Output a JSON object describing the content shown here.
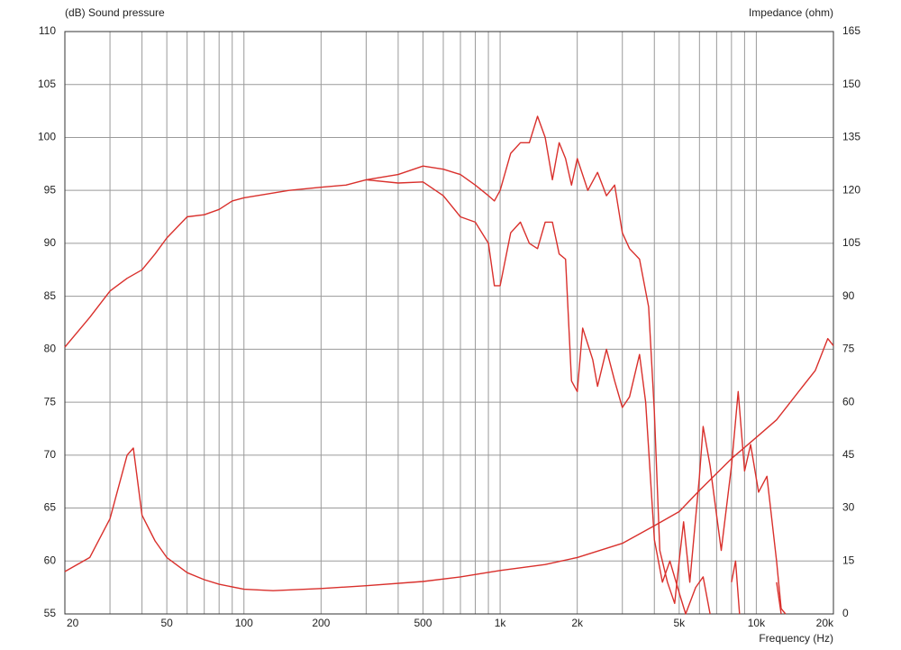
{
  "chart_data": {
    "type": "line",
    "y_label": "(dB)  Sound pressure",
    "y2_label": "Impedance  (ohm)",
    "x_label": "Frequency  (Hz)",
    "log_x": true,
    "grid": true,
    "xlim": [
      20,
      20000
    ],
    "xticks": [
      20,
      50,
      100,
      200,
      500,
      {
        "value": 1000,
        "label": "1k"
      },
      {
        "value": 2000,
        "label": "2k"
      },
      {
        "value": 5000,
        "label": "5k"
      },
      {
        "value": 10000,
        "label": "10k"
      },
      {
        "value": 20000,
        "label": "20k"
      }
    ],
    "xminor_ticks": [
      30,
      40,
      60,
      70,
      80,
      90,
      300,
      400,
      600,
      700,
      800,
      900,
      3000,
      4000,
      6000,
      7000,
      8000,
      9000
    ],
    "ylim": [
      55,
      110
    ],
    "yticks": [
      55,
      60,
      65,
      70,
      75,
      80,
      85,
      90,
      95,
      100,
      105,
      110
    ],
    "y2lim": [
      0,
      165
    ],
    "y2ticks": [
      0,
      15,
      30,
      45,
      60,
      75,
      90,
      105,
      120,
      135,
      150,
      165
    ],
    "series": [
      {
        "color": "#d9302c",
        "x": [
          20,
          25,
          30,
          35,
          40,
          45,
          50,
          60,
          70,
          80,
          90,
          100,
          150,
          200,
          250,
          300,
          400,
          500,
          600,
          700,
          800,
          900,
          950,
          1000,
          1100,
          1200,
          1300,
          1400,
          1500,
          1600,
          1700,
          1800,
          1900,
          2000,
          2200,
          2400,
          2600,
          2800,
          3000,
          3200,
          3500,
          3800,
          4000,
          4200,
          4500,
          4800,
          5000,
          5200,
          5500,
          6000,
          6200,
          6600,
          7300,
          8000,
          8500,
          9000,
          9500,
          10200,
          11000,
          12000,
          12500,
          13000
        ],
        "values": [
          80.2,
          83,
          85.5,
          86.7,
          87.5,
          89,
          90.5,
          92.5,
          92.7,
          93.2,
          94,
          94.3,
          95,
          95.3,
          95.5,
          96,
          96.5,
          97.3,
          97,
          96.5,
          95.5,
          94.5,
          94,
          95,
          98.5,
          99.5,
          99.5,
          102,
          100,
          96,
          99.5,
          98,
          95.5,
          98,
          95,
          96.7,
          94.5,
          95.5,
          91,
          89.5,
          88.5,
          84,
          74,
          61,
          58,
          56,
          60,
          63.7,
          58,
          68,
          72.7,
          69,
          61,
          69,
          76,
          68.5,
          71,
          66.5,
          68,
          60,
          55.5,
          55
        ]
      },
      {
        "color": "#d9302c",
        "x": [
          300,
          400,
          500,
          600,
          700,
          800,
          900,
          950,
          1000,
          1100,
          1200,
          1300,
          1400,
          1500,
          1600,
          1700,
          1800,
          1900,
          2000,
          2100,
          2300,
          2400,
          2600,
          2800,
          3000,
          3200,
          3500,
          3700,
          4000,
          4300,
          4600,
          5000,
          5300,
          5800,
          6200,
          6600,
          7500,
          8000,
          8300,
          8600,
          11500,
          12000,
          12500
        ],
        "values": [
          96,
          95.7,
          95.8,
          94.5,
          92.5,
          92,
          90,
          86,
          86,
          91,
          92,
          90,
          89.5,
          92,
          92,
          89,
          88.5,
          77,
          76,
          82,
          79,
          76.5,
          80,
          77,
          74.5,
          75.5,
          79.5,
          75,
          62,
          58,
          60,
          57,
          55,
          57.5,
          58.5,
          55,
          null,
          58,
          60,
          55,
          null,
          58,
          55
        ]
      },
      {
        "color": "#d9302c",
        "axis": "y2",
        "x": [
          20,
          25,
          30,
          35,
          37,
          40,
          45,
          50,
          60,
          70,
          80,
          100,
          130,
          200,
          300,
          500,
          700,
          1000,
          1500,
          2000,
          3000,
          4000,
          5000,
          6000,
          8000,
          10000,
          12000,
          15000,
          17000,
          19000,
          20000
        ],
        "values": [
          12,
          16,
          27,
          45,
          47,
          28,
          20.7,
          16,
          11.7,
          9.7,
          8.4,
          7,
          6.6,
          7.2,
          8,
          9.2,
          10.5,
          12.3,
          14,
          16,
          20,
          25,
          29,
          35,
          44,
          50,
          55,
          64,
          69,
          78,
          76
        ]
      }
    ]
  }
}
